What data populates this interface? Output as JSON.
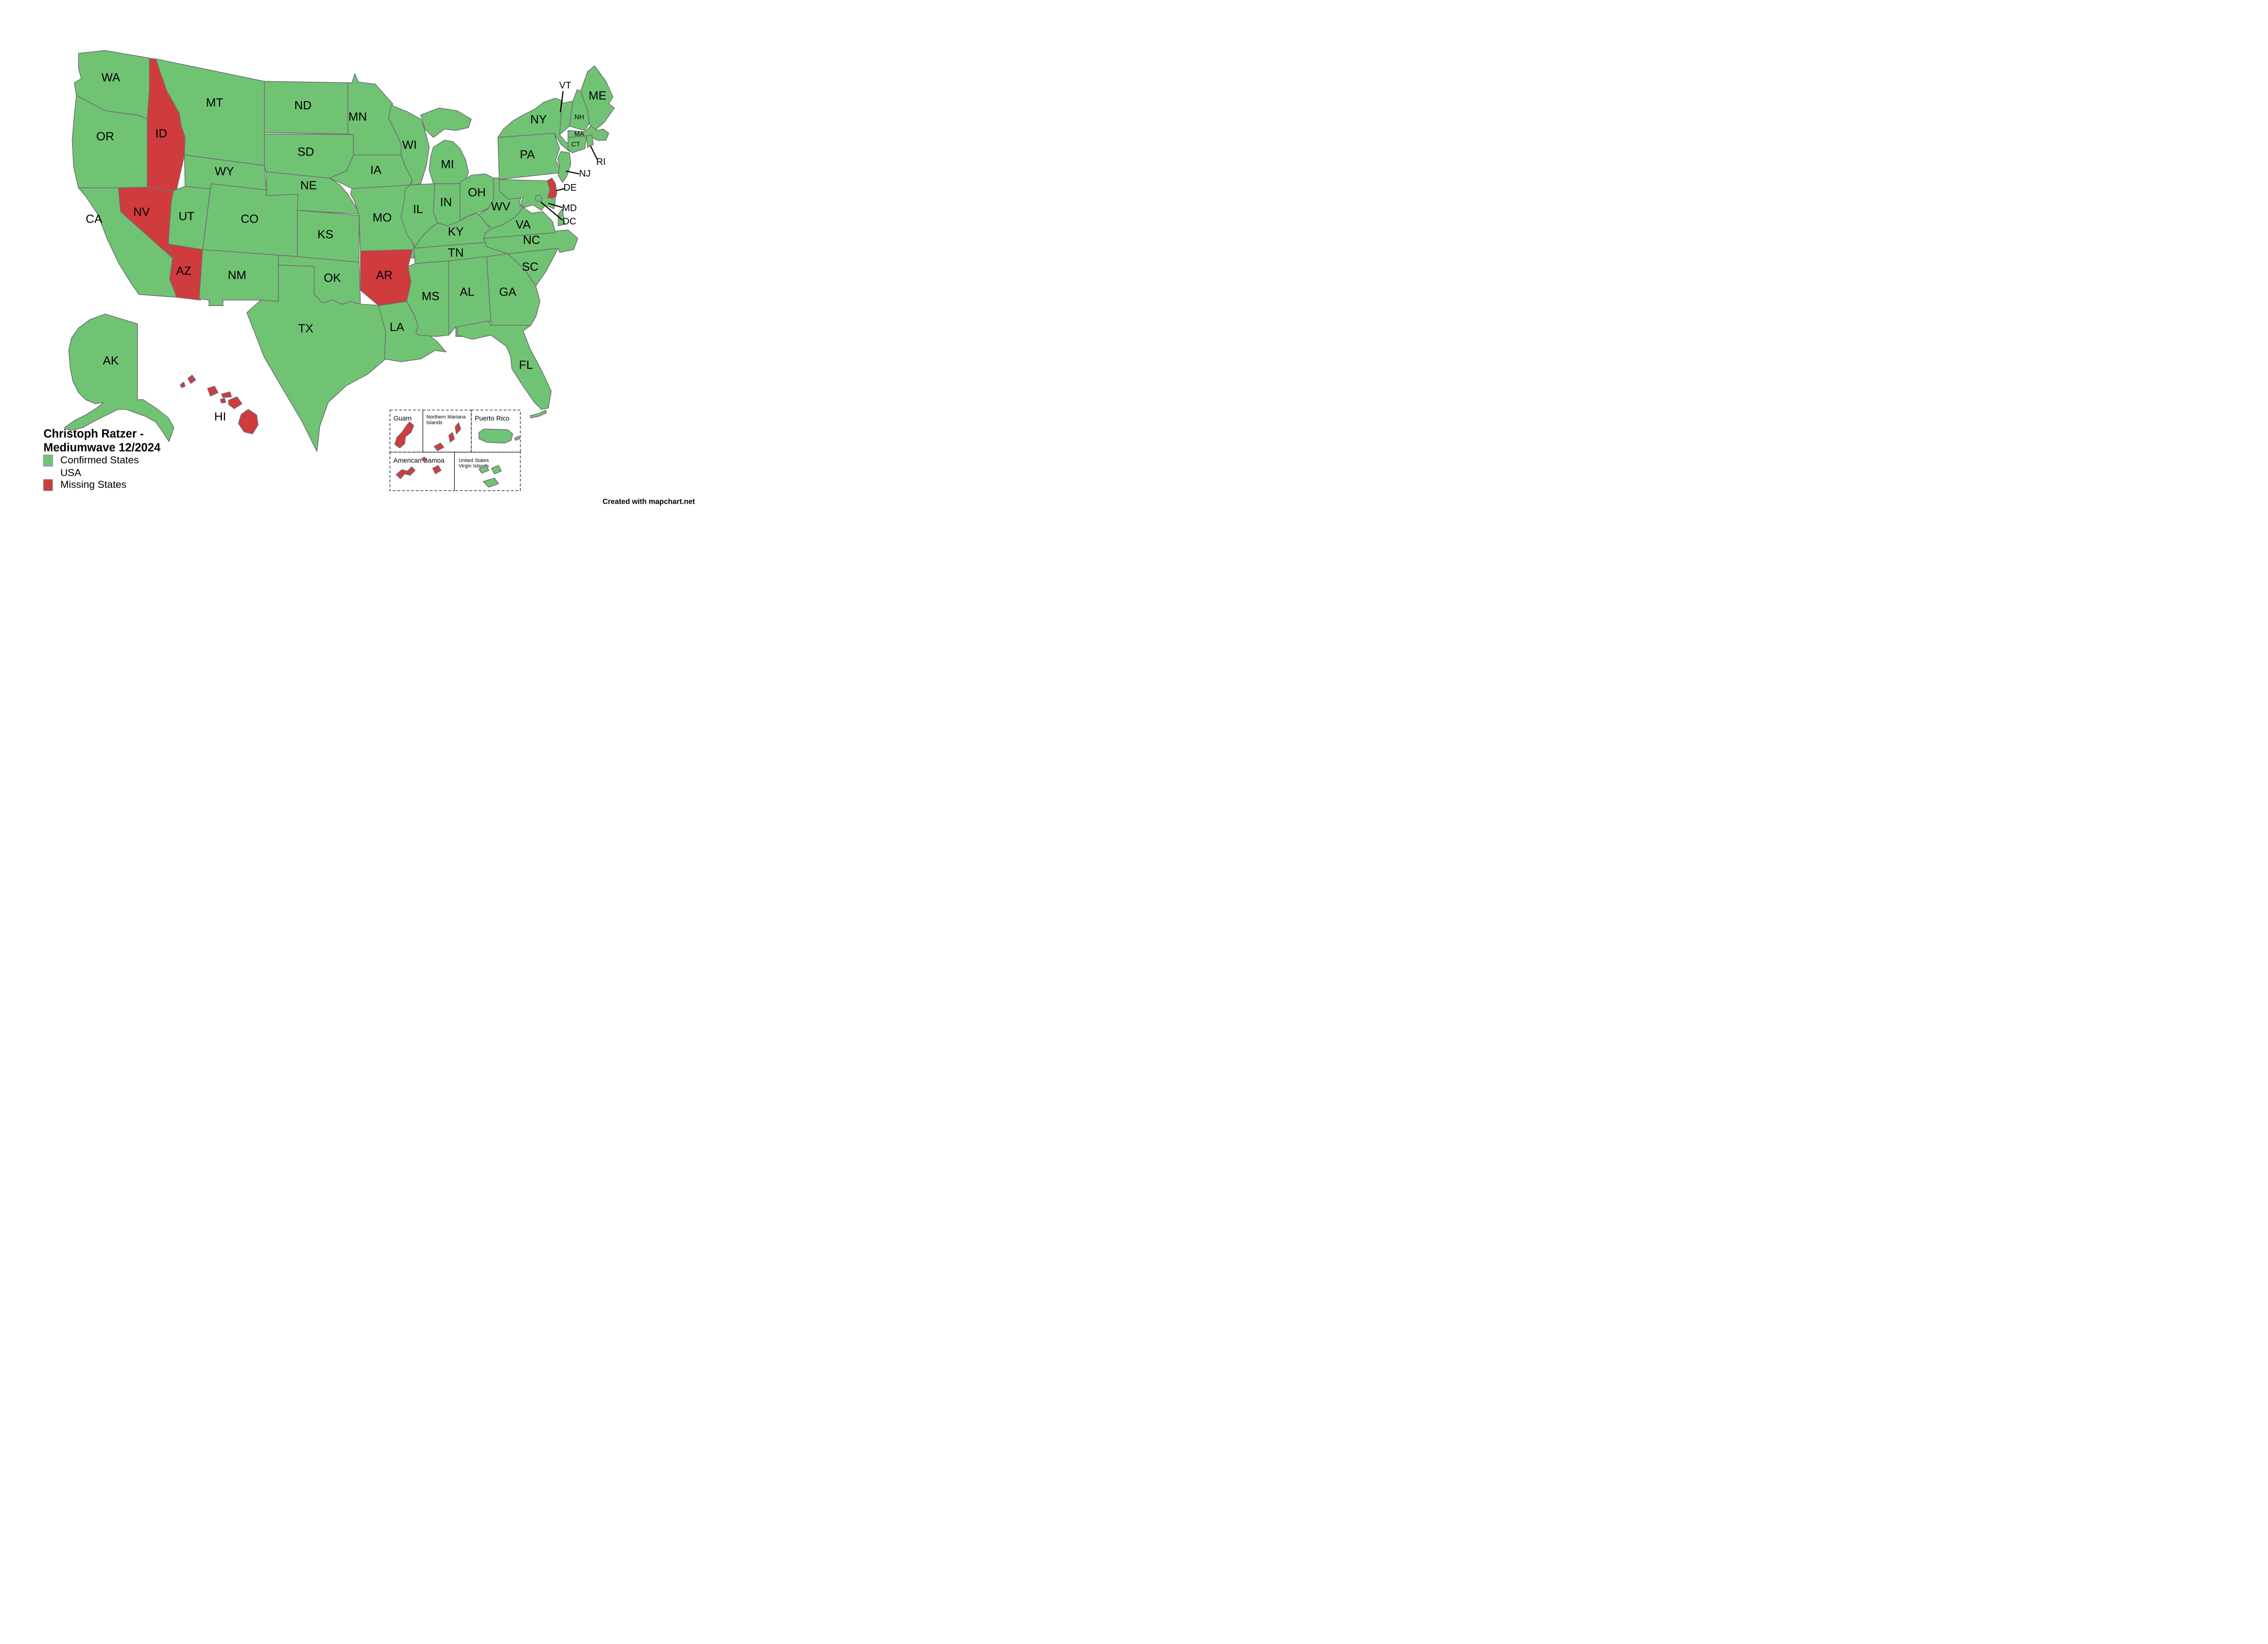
{
  "legend": {
    "title_line1": "Christoph Ratzer -",
    "title_line2": "Mediumwave 12/2024",
    "items": [
      {
        "label_line1": "Confirmed States",
        "label_line2": "USA",
        "status": "confirmed"
      },
      {
        "label_line1": "Missing States",
        "label_line2": "",
        "status": "missing"
      }
    ]
  },
  "credit": "Created with mapchart.net",
  "colors": {
    "confirmed": "#71c374",
    "missing": "#d03b3e",
    "border": "#6f7173",
    "label": "#000000",
    "background": "#ffffff"
  },
  "states": {
    "WA": {
      "label": "WA",
      "status": "confirmed"
    },
    "OR": {
      "label": "OR",
      "status": "confirmed"
    },
    "CA": {
      "label": "CA",
      "status": "confirmed"
    },
    "ID": {
      "label": "ID",
      "status": "missing"
    },
    "NV": {
      "label": "NV",
      "status": "missing"
    },
    "AZ": {
      "label": "AZ",
      "status": "missing"
    },
    "UT": {
      "label": "UT",
      "status": "confirmed"
    },
    "MT": {
      "label": "MT",
      "status": "confirmed"
    },
    "WY": {
      "label": "WY",
      "status": "confirmed"
    },
    "CO": {
      "label": "CO",
      "status": "confirmed"
    },
    "NM": {
      "label": "NM",
      "status": "confirmed"
    },
    "ND": {
      "label": "ND",
      "status": "confirmed"
    },
    "SD": {
      "label": "SD",
      "status": "confirmed"
    },
    "NE": {
      "label": "NE",
      "status": "confirmed"
    },
    "KS": {
      "label": "KS",
      "status": "confirmed"
    },
    "OK": {
      "label": "OK",
      "status": "confirmed"
    },
    "TX": {
      "label": "TX",
      "status": "confirmed"
    },
    "MN": {
      "label": "MN",
      "status": "confirmed"
    },
    "IA": {
      "label": "IA",
      "status": "confirmed"
    },
    "MO": {
      "label": "MO",
      "status": "confirmed"
    },
    "AR": {
      "label": "AR",
      "status": "missing"
    },
    "LA": {
      "label": "LA",
      "status": "confirmed"
    },
    "WI": {
      "label": "WI",
      "status": "confirmed"
    },
    "IL": {
      "label": "IL",
      "status": "confirmed"
    },
    "IN": {
      "label": "IN",
      "status": "confirmed"
    },
    "MI": {
      "label": "MI",
      "status": "confirmed"
    },
    "OH": {
      "label": "OH",
      "status": "confirmed"
    },
    "KY": {
      "label": "KY",
      "status": "confirmed"
    },
    "TN": {
      "label": "TN",
      "status": "confirmed"
    },
    "MS": {
      "label": "MS",
      "status": "confirmed"
    },
    "AL": {
      "label": "AL",
      "status": "confirmed"
    },
    "GA": {
      "label": "GA",
      "status": "confirmed"
    },
    "FL": {
      "label": "FL",
      "status": "confirmed"
    },
    "SC": {
      "label": "SC",
      "status": "confirmed"
    },
    "NC": {
      "label": "NC",
      "status": "confirmed"
    },
    "VA": {
      "label": "VA",
      "status": "confirmed"
    },
    "WV": {
      "label": "WV",
      "status": "confirmed"
    },
    "PA": {
      "label": "PA",
      "status": "confirmed"
    },
    "NY": {
      "label": "NY",
      "status": "confirmed"
    },
    "NJ": {
      "label": "NJ",
      "status": "confirmed"
    },
    "DE": {
      "label": "DE",
      "status": "missing"
    },
    "MD": {
      "label": "MD",
      "status": "confirmed"
    },
    "DC": {
      "label": "DC",
      "status": "confirmed"
    },
    "VT": {
      "label": "VT",
      "status": "confirmed"
    },
    "NH": {
      "label": "NH",
      "status": "confirmed"
    },
    "MA": {
      "label": "MA",
      "status": "confirmed"
    },
    "CT": {
      "label": "CT",
      "status": "confirmed"
    },
    "RI": {
      "label": "RI",
      "status": "confirmed"
    },
    "ME": {
      "label": "ME",
      "status": "confirmed"
    },
    "AK": {
      "label": "AK",
      "status": "confirmed"
    },
    "HI": {
      "label": "HI",
      "status": "missing"
    }
  },
  "territories": {
    "GU": {
      "name_line1": "Guam",
      "name_line2": "",
      "status": "missing"
    },
    "MP": {
      "name_line1": "Northern Mariana",
      "name_line2": "Islands",
      "status": "missing"
    },
    "PR": {
      "name_line1": "Puerto Rico",
      "name_line2": "",
      "status": "confirmed"
    },
    "AS": {
      "name_line1": "American Samoa",
      "name_line2": "",
      "status": "missing"
    },
    "VI": {
      "name_line1": "United States",
      "name_line2": "Virgin Islands",
      "status": "confirmed"
    }
  }
}
